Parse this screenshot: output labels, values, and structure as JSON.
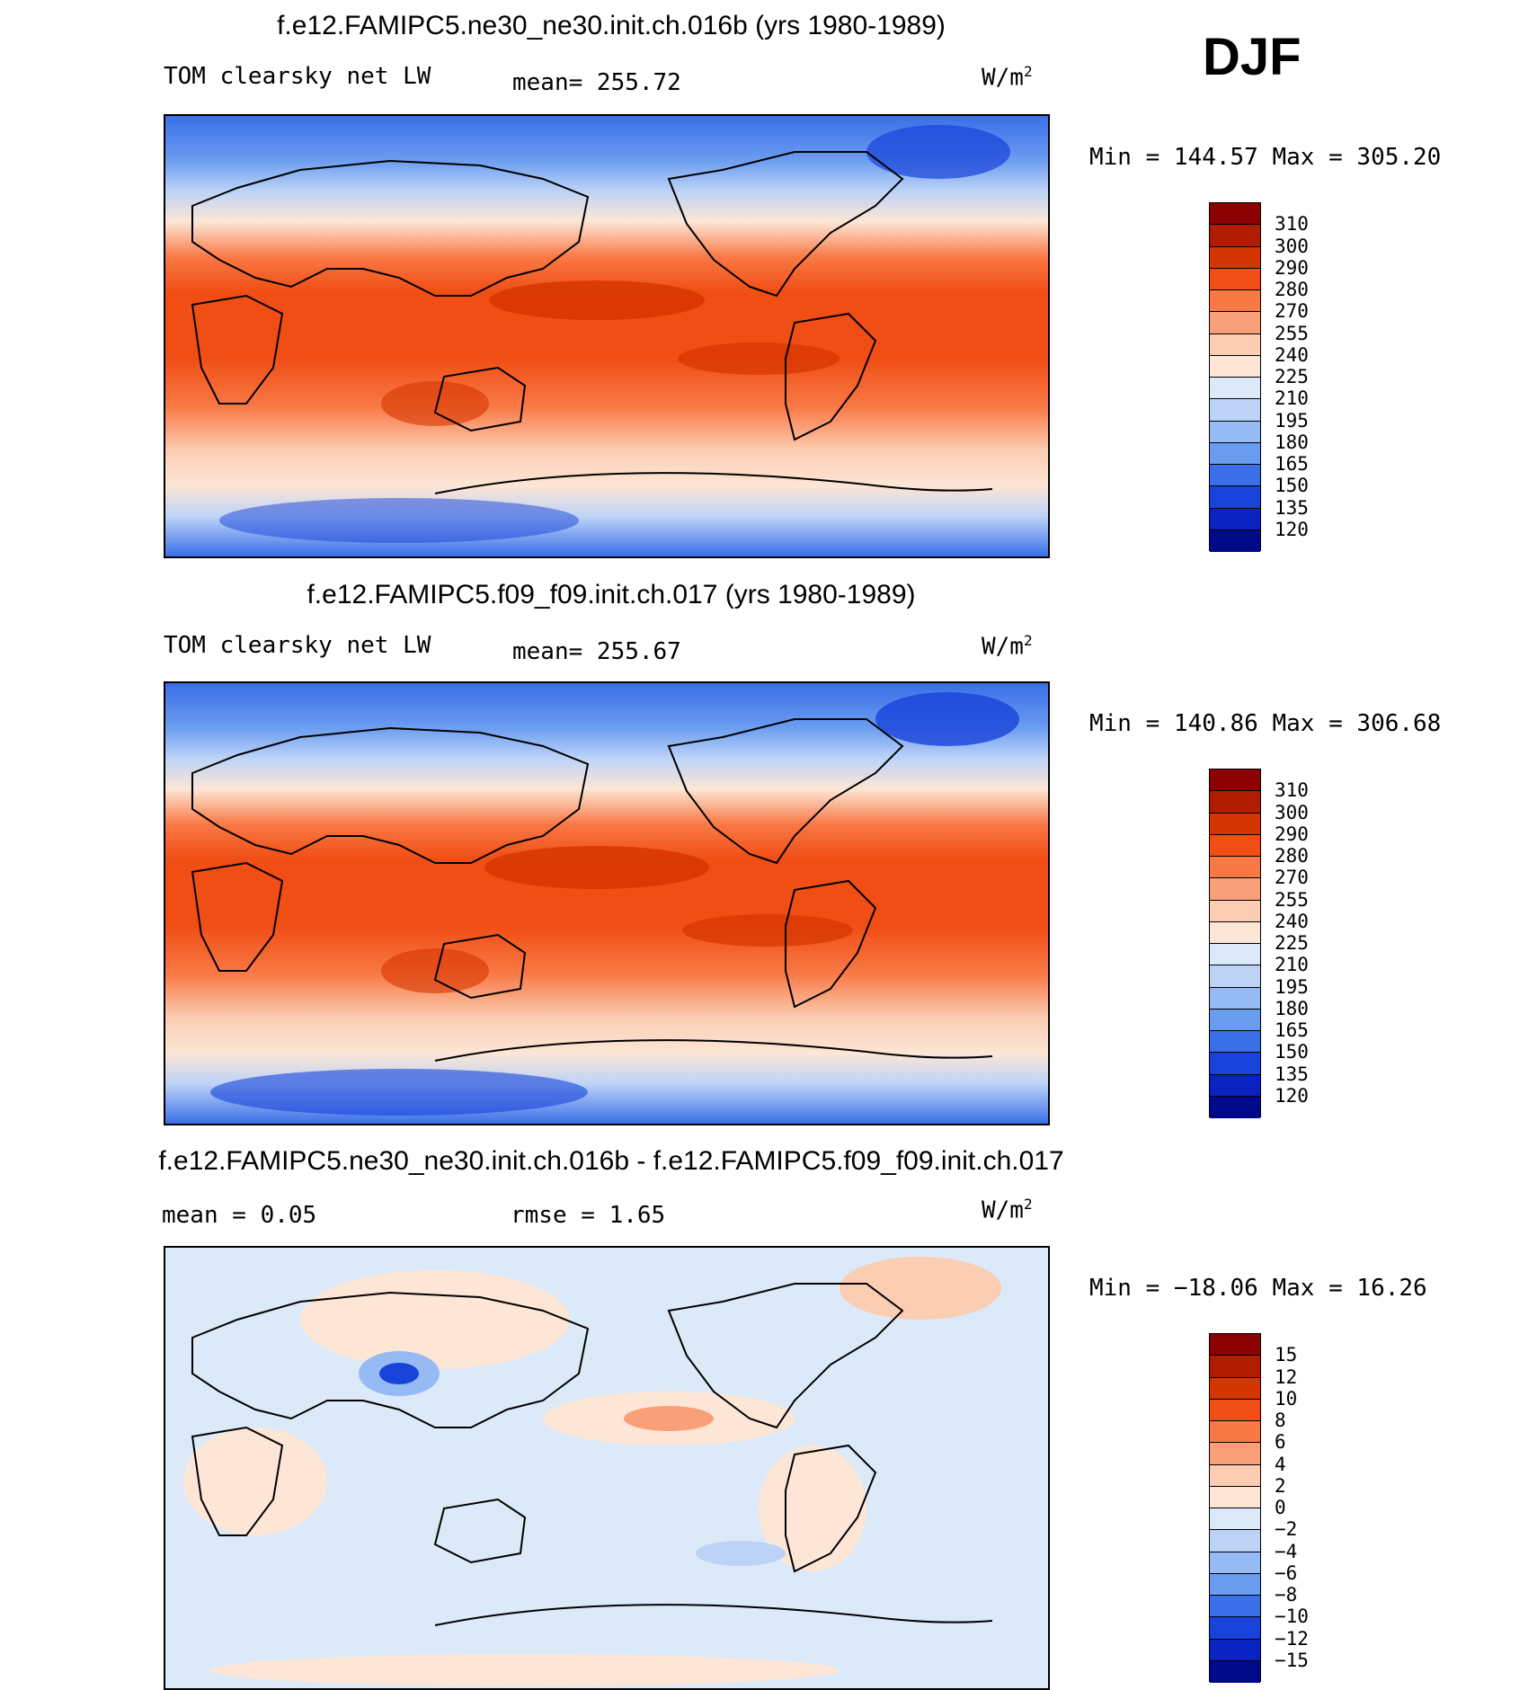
{
  "season": "DJF",
  "units_base": "W/m",
  "units_exp": "2",
  "panels": [
    {
      "id": "top",
      "title": "f.e12.FAMIPC5.ne30_ne30.init.ch.016b (yrs 1980-1989)",
      "left_label": "TOM clearsky net LW",
      "stat_label": "mean=  255.72",
      "minmax": "Min  =  144.57  Max  =  305.20",
      "colorbar": {
        "labels": [
          "310",
          "300",
          "290",
          "280",
          "270",
          "255",
          "240",
          "225",
          "210",
          "195",
          "180",
          "165",
          "150",
          "135",
          "120"
        ],
        "colors": [
          "#8b0000",
          "#b01c00",
          "#d53500",
          "#f04e14",
          "#f97946",
          "#f9a07a",
          "#fbcdb2",
          "#fde6d6",
          "#dce9f8",
          "#bcd3f7",
          "#96baf3",
          "#6a9cf0",
          "#3a6fe8",
          "#1842da",
          "#0a22bf",
          "#000a88"
        ]
      }
    },
    {
      "id": "middle",
      "title": "f.e12.FAMIPC5.f09_f09.init.ch.017 (yrs 1980-1989)",
      "left_label": "TOM clearsky net LW",
      "stat_label": "mean=  255.67",
      "minmax": "Min  =  140.86  Max  =  306.68",
      "colorbar": {
        "labels": [
          "310",
          "300",
          "290",
          "280",
          "270",
          "255",
          "240",
          "225",
          "210",
          "195",
          "180",
          "165",
          "150",
          "135",
          "120"
        ],
        "colors": [
          "#8b0000",
          "#b01c00",
          "#d53500",
          "#f04e14",
          "#f97946",
          "#f9a07a",
          "#fbcdb2",
          "#fde6d6",
          "#dce9f8",
          "#bcd3f7",
          "#96baf3",
          "#6a9cf0",
          "#3a6fe8",
          "#1842da",
          "#0a22bf",
          "#000a88"
        ]
      }
    },
    {
      "id": "diff",
      "title": "f.e12.FAMIPC5.ne30_ne30.init.ch.016b - f.e12.FAMIPC5.f09_f09.init.ch.017",
      "left_label": "mean  =      0.05",
      "stat_label": "rmse  =      1.65",
      "minmax": "Min  =  −18.06  Max  =    16.26",
      "colorbar": {
        "labels": [
          "15",
          "12",
          "10",
          "8",
          "6",
          "4",
          "2",
          "0",
          "−2",
          "−4",
          "−6",
          "−8",
          "−10",
          "−12",
          "−15"
        ],
        "colors": [
          "#8b0000",
          "#b01c00",
          "#d53500",
          "#f04e14",
          "#f97946",
          "#f9a07a",
          "#fbcdb2",
          "#fde6d6",
          "#dce9f8",
          "#bcd3f7",
          "#96baf3",
          "#6a9cf0",
          "#3a6fe8",
          "#1842da",
          "#0a22bf",
          "#000a88"
        ]
      }
    }
  ]
}
